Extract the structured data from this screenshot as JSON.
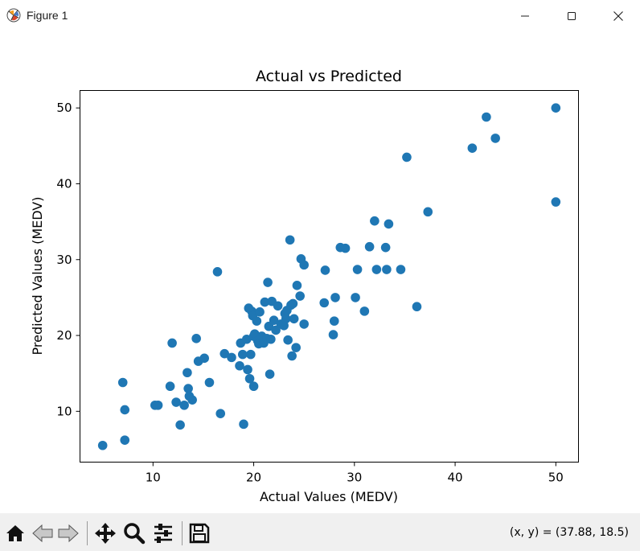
{
  "window": {
    "title": "Figure 1"
  },
  "toolbar": {
    "buttons": [
      {
        "name": "home-icon"
      },
      {
        "name": "back-icon"
      },
      {
        "name": "forward-icon"
      },
      {
        "name": "pan-icon"
      },
      {
        "name": "zoom-icon"
      },
      {
        "name": "configure-subplots-icon"
      },
      {
        "name": "save-icon"
      }
    ],
    "coords": "(x, y) = (37.88, 18.5)"
  },
  "colors": {
    "marker": "#1f77b4",
    "toolbar_bg": "#f0f0f0"
  },
  "chart_data": {
    "type": "scatter",
    "title": "Actual vs Predicted",
    "xlabel": "Actual Values (MEDV)",
    "ylabel": "Predicted Values (MEDV)",
    "xlim": [
      2.75,
      52.25
    ],
    "ylim": [
      3.3,
      52.3
    ],
    "xticks": [
      10,
      20,
      30,
      40,
      50
    ],
    "yticks": [
      10,
      20,
      30,
      40,
      50
    ],
    "xtick_labels": [
      "10",
      "20",
      "30",
      "40",
      "50"
    ],
    "ytick_labels": [
      "10",
      "20",
      "30",
      "40",
      "50"
    ],
    "grid": false,
    "legend": "none",
    "points": [
      [
        5.0,
        5.5
      ],
      [
        7.0,
        13.8
      ],
      [
        7.2,
        10.2
      ],
      [
        7.2,
        6.2
      ],
      [
        10.2,
        10.8
      ],
      [
        10.5,
        10.8
      ],
      [
        11.7,
        13.3
      ],
      [
        11.9,
        19.0
      ],
      [
        12.3,
        11.2
      ],
      [
        12.7,
        8.2
      ],
      [
        13.1,
        10.8
      ],
      [
        13.4,
        15.1
      ],
      [
        13.5,
        13.0
      ],
      [
        13.6,
        12.0
      ],
      [
        13.9,
        11.5
      ],
      [
        14.3,
        19.6
      ],
      [
        14.5,
        16.6
      ],
      [
        15.1,
        17.0
      ],
      [
        15.6,
        13.8
      ],
      [
        16.4,
        28.4
      ],
      [
        16.7,
        9.7
      ],
      [
        17.1,
        17.6
      ],
      [
        17.8,
        17.1
      ],
      [
        18.6,
        16.0
      ],
      [
        18.7,
        19.0
      ],
      [
        18.9,
        17.5
      ],
      [
        19.0,
        8.3
      ],
      [
        19.3,
        19.5
      ],
      [
        19.4,
        15.5
      ],
      [
        19.5,
        23.6
      ],
      [
        19.6,
        14.3
      ],
      [
        19.7,
        17.5
      ],
      [
        19.8,
        23.2
      ],
      [
        19.9,
        22.6
      ],
      [
        20.0,
        13.3
      ],
      [
        20.0,
        19.9
      ],
      [
        20.1,
        20.2
      ],
      [
        20.3,
        21.9
      ],
      [
        20.4,
        19.3
      ],
      [
        20.5,
        18.9
      ],
      [
        20.6,
        23.1
      ],
      [
        20.8,
        19.9
      ],
      [
        21.0,
        19.0
      ],
      [
        21.1,
        24.4
      ],
      [
        21.3,
        19.6
      ],
      [
        21.4,
        27.0
      ],
      [
        21.5,
        21.2
      ],
      [
        21.6,
        14.9
      ],
      [
        21.7,
        19.5
      ],
      [
        21.8,
        24.5
      ],
      [
        22.0,
        22.0
      ],
      [
        22.2,
        20.7
      ],
      [
        22.4,
        23.9
      ],
      [
        22.7,
        21.5
      ],
      [
        23.0,
        21.3
      ],
      [
        23.1,
        22.9
      ],
      [
        23.2,
        22.2
      ],
      [
        23.3,
        23.3
      ],
      [
        23.4,
        19.4
      ],
      [
        23.6,
        32.6
      ],
      [
        23.7,
        24.0
      ],
      [
        23.8,
        17.3
      ],
      [
        23.9,
        24.2
      ],
      [
        24.0,
        22.2
      ],
      [
        24.2,
        18.4
      ],
      [
        24.3,
        26.6
      ],
      [
        24.6,
        25.2
      ],
      [
        24.7,
        30.1
      ],
      [
        25.0,
        29.3
      ],
      [
        25.0,
        21.5
      ],
      [
        27.0,
        24.3
      ],
      [
        27.1,
        28.6
      ],
      [
        27.9,
        20.1
      ],
      [
        28.0,
        21.9
      ],
      [
        28.1,
        25.0
      ],
      [
        28.6,
        31.6
      ],
      [
        29.1,
        31.5
      ],
      [
        30.1,
        25.0
      ],
      [
        30.3,
        28.7
      ],
      [
        31.0,
        23.2
      ],
      [
        31.5,
        31.7
      ],
      [
        32.0,
        35.1
      ],
      [
        32.2,
        28.7
      ],
      [
        33.1,
        31.6
      ],
      [
        33.2,
        28.7
      ],
      [
        33.4,
        34.7
      ],
      [
        34.6,
        28.7
      ],
      [
        35.2,
        43.5
      ],
      [
        36.2,
        23.8
      ],
      [
        37.3,
        36.3
      ],
      [
        41.7,
        44.7
      ],
      [
        43.1,
        48.8
      ],
      [
        44.0,
        46.0
      ],
      [
        50.0,
        50.0
      ],
      [
        50.0,
        37.6
      ]
    ]
  }
}
